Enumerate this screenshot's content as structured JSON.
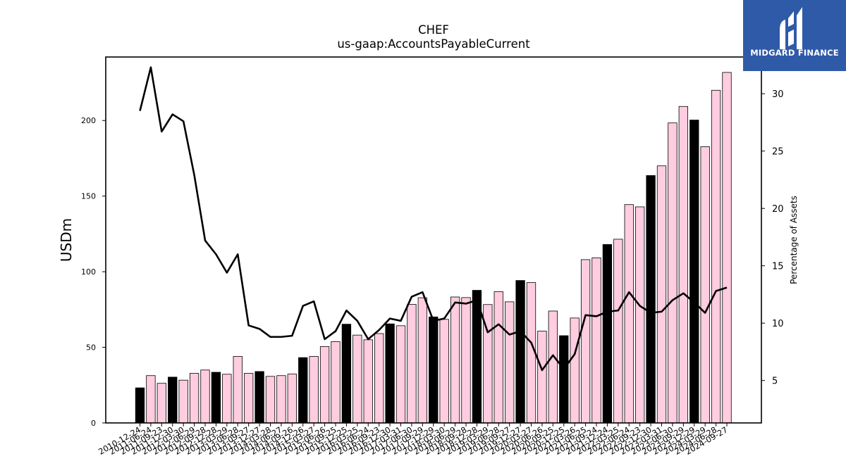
{
  "chart_data": {
    "type": "bar",
    "title": "CHEF",
    "subtitle": "us-gaap:AccountsPayableCurrent",
    "ylabel": "USDm",
    "y2label": "Percentage of Assets",
    "ylim": [
      0,
      242
    ],
    "y2lim": [
      1.3,
      33.2
    ],
    "yticks": [
      0,
      50,
      100,
      150,
      200
    ],
    "y2ticks": [
      5,
      10,
      15,
      20,
      25,
      30
    ],
    "grid": false,
    "categories": [
      "2010-12-24",
      "2011-06-24",
      "2011-09-23",
      "2011-12-30",
      "2012-03-30",
      "2012-06-29",
      "2012-09-28",
      "2012-12-28",
      "2013-03-29",
      "2013-06-28",
      "2013-09-27",
      "2013-12-27",
      "2014-03-28",
      "2014-06-27",
      "2014-09-26",
      "2014-12-26",
      "2015-03-27",
      "2015-06-26",
      "2015-09-25",
      "2015-12-25",
      "2016-03-25",
      "2016-06-24",
      "2016-09-23",
      "2016-12-30",
      "2017-03-31",
      "2017-06-30",
      "2017-09-29",
      "2017-12-29",
      "2018-03-30",
      "2018-06-29",
      "2018-09-28",
      "2018-12-28",
      "2019-03-29",
      "2019-06-28",
      "2019-09-27",
      "2019-12-27",
      "2020-03-27",
      "2020-06-26",
      "2020-09-25",
      "2020-12-25",
      "2021-03-26",
      "2021-06-25",
      "2021-09-24",
      "2021-12-24",
      "2022-03-25",
      "2022-06-24",
      "2022-09-23",
      "2022-12-30",
      "2023-03-31",
      "2023-06-30",
      "2023-09-29",
      "2023-12-29",
      "2024-03-29",
      "2024-06-28",
      "2024-09-27"
    ],
    "series": [
      {
        "kind": "bar",
        "axis": "left",
        "values": [
          23.2,
          31.3,
          26.2,
          30.3,
          28.3,
          32.8,
          35.0,
          33.5,
          32.2,
          44.0,
          32.8,
          34.0,
          30.8,
          31.3,
          32.3,
          43.2,
          44.0,
          50.5,
          53.8,
          65.3,
          58.1,
          55.0,
          59.1,
          65.5,
          64.3,
          78.4,
          82.8,
          70.1,
          68.5,
          83.3,
          82.9,
          87.7,
          78.3,
          86.8,
          80.1,
          94.2,
          92.8,
          60.7,
          74.0,
          57.7,
          69.4,
          108.0,
          109.2,
          118.0,
          121.5,
          144.4,
          142.9,
          163.6,
          170.0,
          198.4,
          209.3,
          200.3,
          182.7,
          220.0,
          231.8
        ],
        "colors": [
          "#000000",
          "#ffcce0",
          "#ffcce0",
          "#000000",
          "#ffcce0",
          "#ffcce0",
          "#ffcce0",
          "#000000",
          "#ffcce0",
          "#ffcce0",
          "#ffcce0",
          "#000000",
          "#ffcce0",
          "#ffcce0",
          "#ffcce0",
          "#000000",
          "#ffcce0",
          "#ffcce0",
          "#ffcce0",
          "#000000",
          "#ffcce0",
          "#ffcce0",
          "#ffcce0",
          "#000000",
          "#ffcce0",
          "#ffcce0",
          "#ffcce0",
          "#000000",
          "#ffcce0",
          "#ffcce0",
          "#ffcce0",
          "#000000",
          "#ffcce0",
          "#ffcce0",
          "#ffcce0",
          "#000000",
          "#ffcce0",
          "#ffcce0",
          "#ffcce0",
          "#000000",
          "#ffcce0",
          "#ffcce0",
          "#ffcce0",
          "#000000",
          "#ffcce0",
          "#ffcce0",
          "#ffcce0",
          "#000000",
          "#ffcce0",
          "#ffcce0",
          "#ffcce0",
          "#000000",
          "#ffcce0",
          "#ffcce0",
          "#ffcce0"
        ]
      },
      {
        "kind": "line",
        "axis": "right",
        "color": "#000000",
        "values": [
          28.5,
          32.3,
          26.7,
          28.2,
          27.6,
          22.9,
          17.2,
          16.0,
          14.4,
          16.0,
          9.8,
          9.5,
          8.8,
          8.8,
          8.9,
          11.5,
          11.9,
          8.6,
          9.3,
          11.1,
          10.2,
          8.6,
          9.4,
          10.4,
          10.2,
          12.3,
          12.7,
          10.2,
          10.4,
          11.8,
          11.7,
          12.0,
          9.2,
          9.9,
          9.0,
          9.3,
          8.3,
          5.9,
          7.2,
          6.0,
          7.3,
          10.7,
          10.6,
          11.0,
          11.1,
          12.7,
          11.5,
          10.9,
          11.0,
          12.0,
          12.6,
          11.8,
          10.9,
          12.8,
          13.1
        ]
      }
    ]
  },
  "branding": {
    "logo_text": "MIDGARD FINANCE"
  }
}
